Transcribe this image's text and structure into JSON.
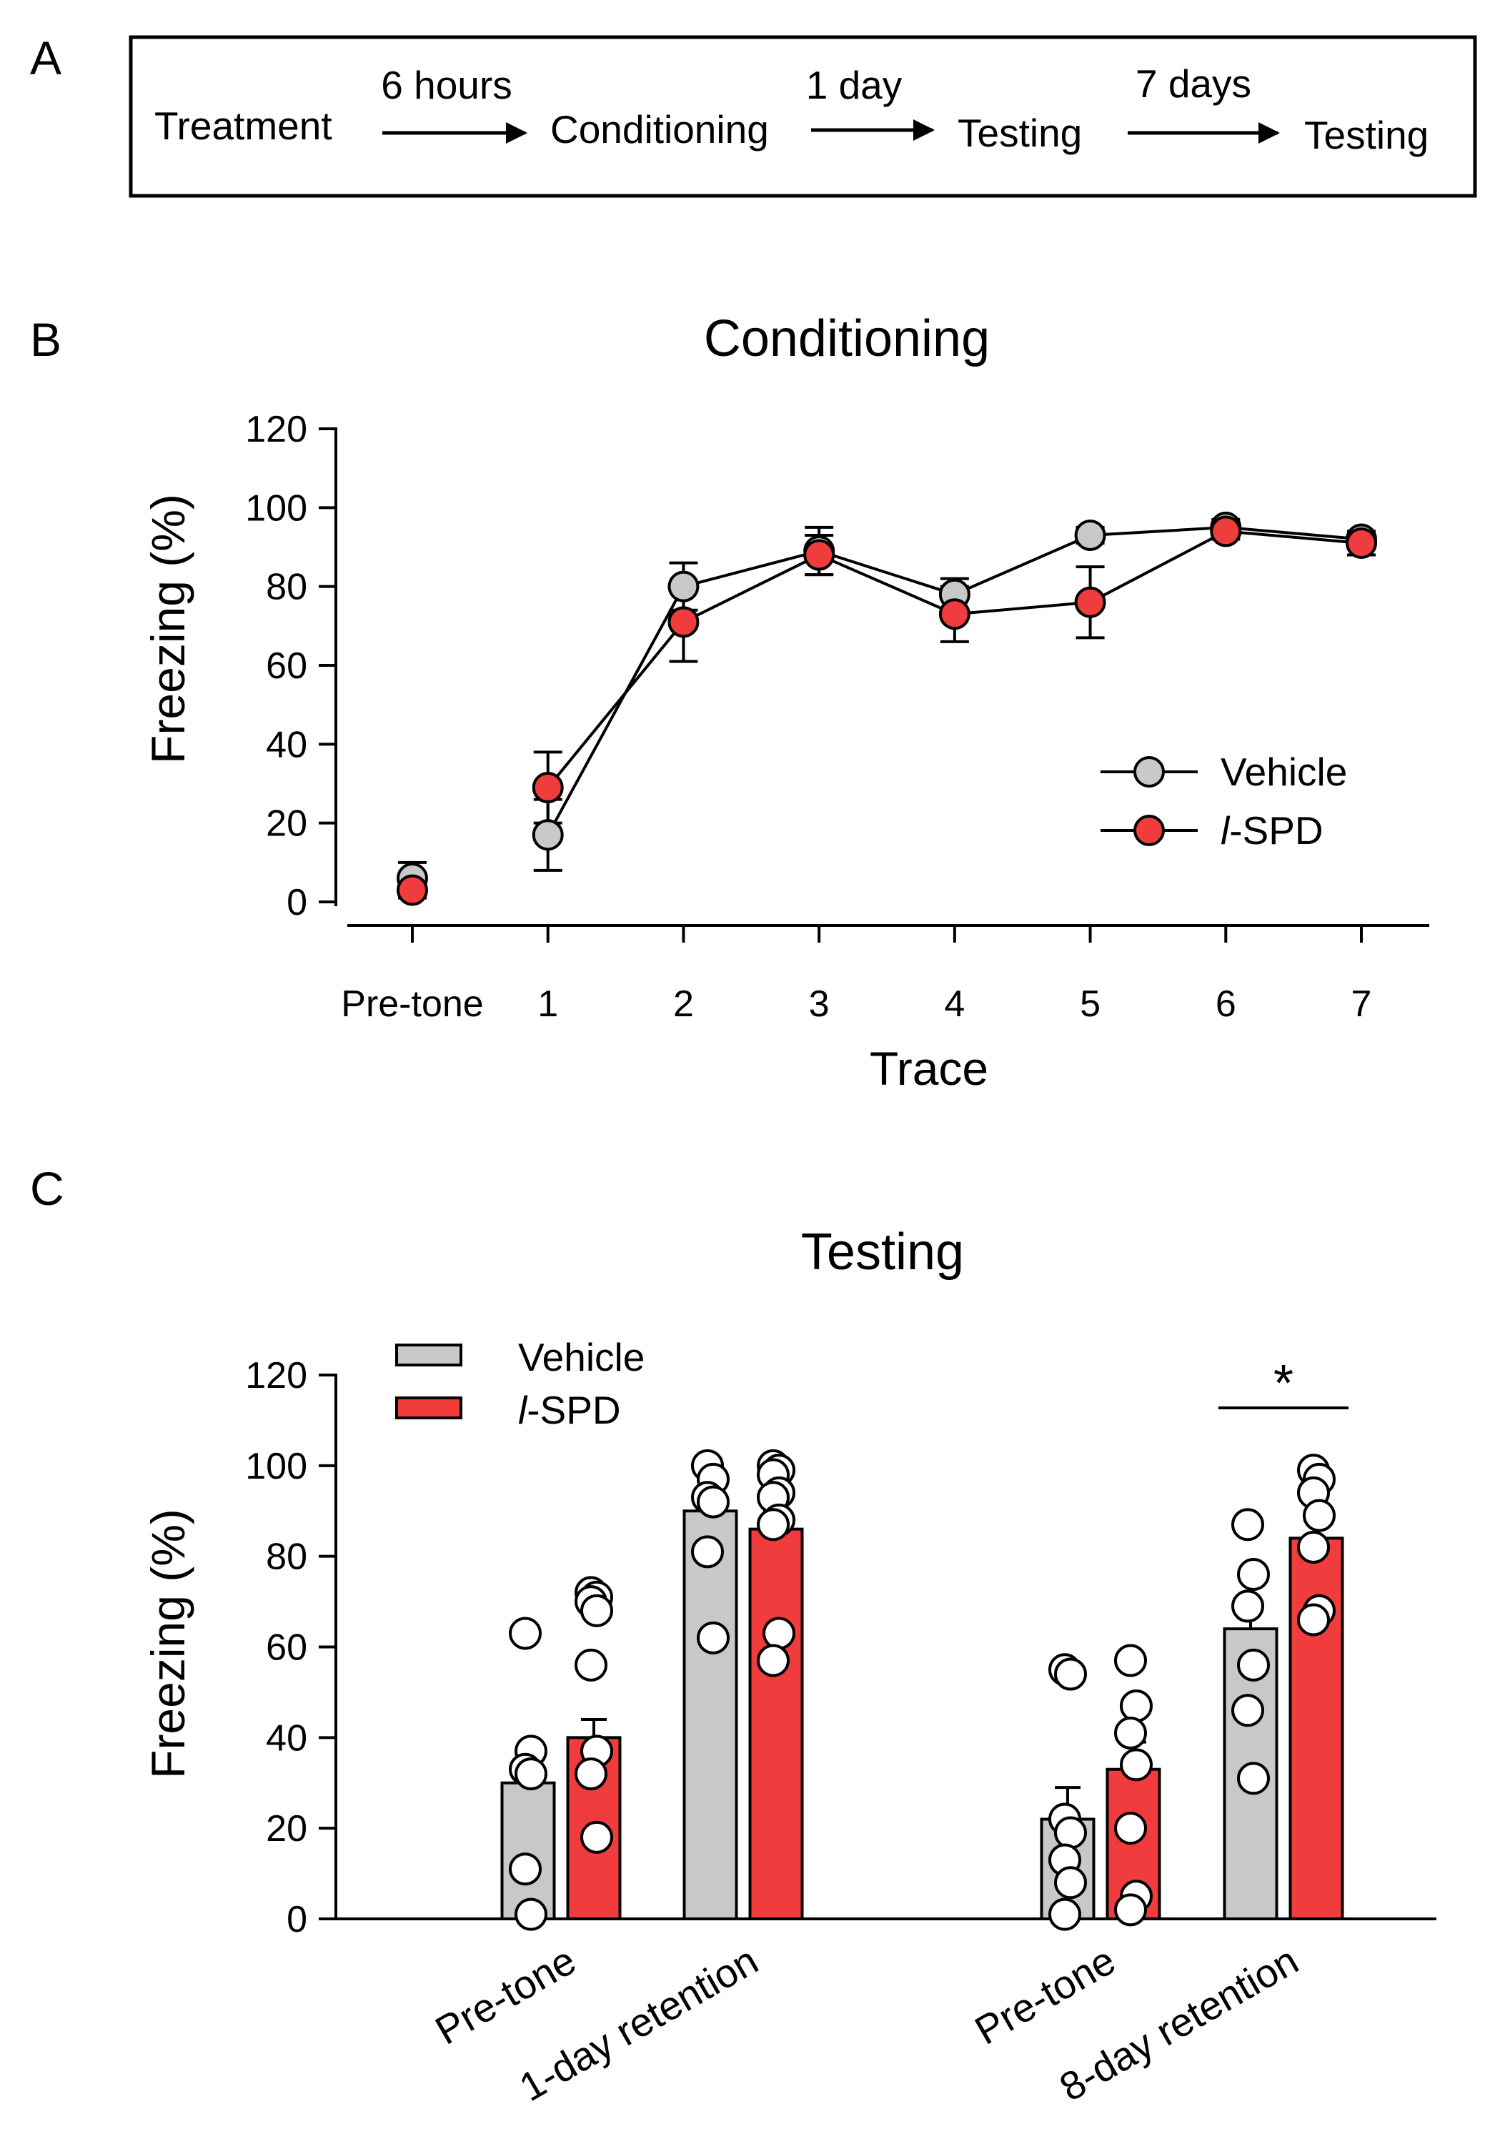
{
  "figure": {
    "panel_a": {
      "letter": "A",
      "steps": [
        "Treatment",
        "Conditioning",
        "Testing",
        "Testing"
      ],
      "intervals": [
        "6 hours",
        "1 day",
        "7 days"
      ]
    },
    "panel_b_letter": "B",
    "panel_c_letter": "C"
  },
  "colors": {
    "vehicle": "#c8c8c8",
    "lspd": "#f03c3c"
  },
  "chart_data": [
    {
      "id": "conditioning",
      "type": "line",
      "title": "Conditioning",
      "xlabel": "Trace",
      "ylabel": "Freezing (%)",
      "categories": [
        "Pre-tone",
        "1",
        "2",
        "3",
        "4",
        "5",
        "6",
        "7"
      ],
      "ylim": [
        0,
        120
      ],
      "yticks": [
        0,
        20,
        40,
        60,
        80,
        100,
        120
      ],
      "legend_position": "right",
      "series": [
        {
          "name": "Vehicle",
          "values": [
            6,
            17,
            80,
            89,
            78,
            93,
            95,
            92
          ],
          "errors": [
            4,
            9,
            6,
            6,
            4,
            2,
            2,
            2
          ],
          "connect_from": 1
        },
        {
          "name": "l-SPD",
          "name_prefix": "l",
          "name_rest": "-SPD",
          "values": [
            3,
            29,
            71,
            88,
            73,
            76,
            94,
            91
          ],
          "errors": [
            2,
            9,
            10,
            5,
            7,
            9,
            2,
            3
          ],
          "connect_from": 1
        }
      ]
    },
    {
      "id": "testing",
      "type": "bar",
      "title": "Testing",
      "ylabel": "Freezing (%)",
      "categories": [
        "Pre-tone",
        "1-day retention",
        "Pre-tone",
        "8-day retention"
      ],
      "ylim": [
        0,
        120
      ],
      "yticks": [
        0,
        20,
        40,
        60,
        80,
        100,
        120
      ],
      "legend_position": "top-left",
      "significance": {
        "between": "8-day retention",
        "label": "*"
      },
      "series": [
        {
          "name": "Vehicle",
          "values": [
            30,
            90,
            22,
            64
          ],
          "errors": [
            5,
            3,
            7,
            6
          ],
          "points": [
            [
              63,
              37,
              33,
              32,
              11,
              1
            ],
            [
              100,
              97,
              93,
              92,
              81,
              62
            ],
            [
              55,
              54,
              22,
              19,
              13,
              8,
              1
            ],
            [
              87,
              76,
              69,
              56,
              46,
              31
            ]
          ]
        },
        {
          "name": "l-SPD",
          "name_prefix": "l",
          "name_rest": "-SPD",
          "values": [
            40,
            86,
            33,
            84
          ],
          "errors": [
            4,
            4,
            6,
            4
          ],
          "points": [
            [
              72,
              71,
              70,
              68,
              56,
              37,
              32,
              18
            ],
            [
              100,
              99,
              98,
              94,
              93,
              88,
              87,
              63,
              57
            ],
            [
              57,
              47,
              41,
              34,
              20,
              5,
              2
            ],
            [
              99,
              97,
              94,
              89,
              82,
              68,
              66
            ]
          ]
        }
      ]
    }
  ]
}
